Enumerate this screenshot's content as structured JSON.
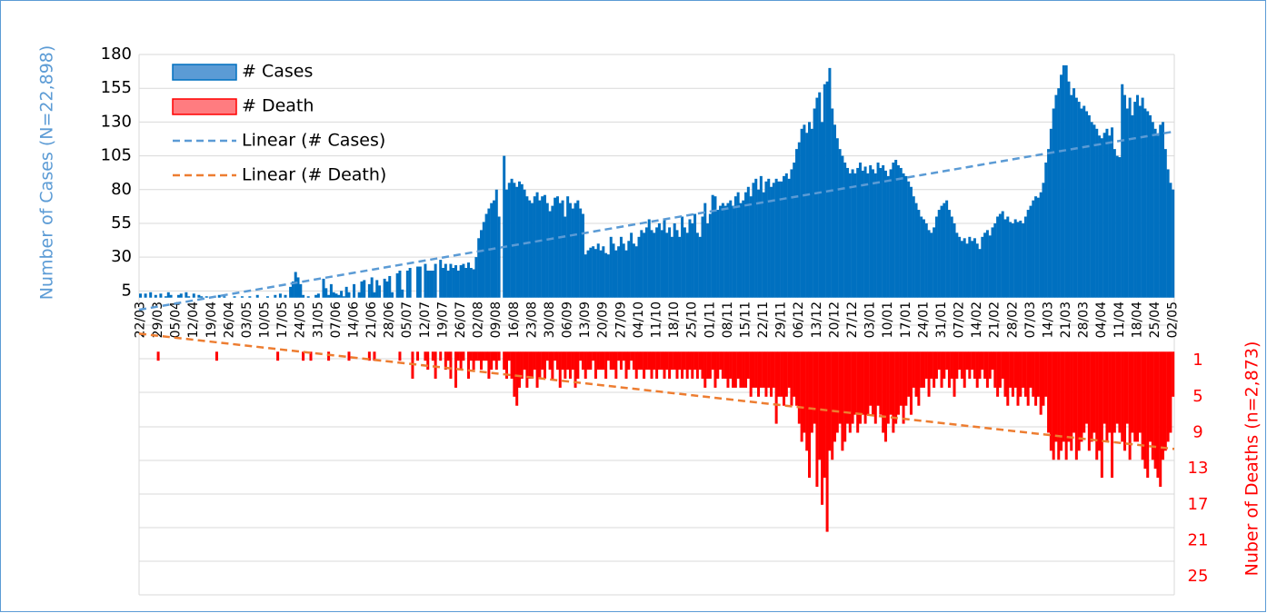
{
  "chart_data": {
    "type": "bar",
    "y_label": "Number of Cases (N=22,898)",
    "y2_label": "Nuber of Deaths (n=2,873)",
    "ylim": [
      -220,
      180
    ],
    "yticks": [
      5,
      30,
      55,
      80,
      105,
      130,
      155,
      180
    ],
    "y2lim": [
      27,
      -33
    ],
    "y2ticks": [
      1,
      5,
      9,
      13,
      17,
      21,
      25
    ],
    "legend": "top-left",
    "categories": [
      "22/03",
      null,
      null,
      null,
      null,
      null,
      null,
      "29/03",
      null,
      null,
      null,
      null,
      null,
      null,
      "05/04",
      null,
      null,
      null,
      null,
      null,
      null,
      "12/04",
      null,
      null,
      null,
      null,
      null,
      null,
      "19/04",
      null,
      null,
      null,
      null,
      null,
      null,
      "26/04",
      null,
      null,
      null,
      null,
      null,
      null,
      "03/05",
      null,
      null,
      null,
      null,
      null,
      null,
      "10/05",
      null,
      null,
      null,
      null,
      null,
      null,
      "17/05",
      null,
      null,
      null,
      null,
      null,
      null,
      "24/05",
      null,
      null,
      null,
      null,
      null,
      null,
      "31/05",
      null,
      null,
      null,
      null,
      null,
      null,
      "07/06",
      null,
      null,
      null,
      null,
      null,
      null,
      "14/06",
      null,
      null,
      null,
      null,
      null,
      null,
      "21/06",
      null,
      null,
      null,
      null,
      null,
      null,
      "28/06",
      null,
      null,
      null,
      null,
      null,
      null,
      "05/07",
      null,
      null,
      null,
      null,
      null,
      null,
      "12/07",
      null,
      null,
      null,
      null,
      null,
      null,
      "19/07",
      null,
      null,
      null,
      null,
      null,
      null,
      "26/07",
      null,
      null,
      null,
      null,
      null,
      null,
      "02/08",
      null,
      null,
      null,
      null,
      null,
      null,
      "09/08",
      null,
      null,
      null,
      null,
      null,
      null,
      "16/08",
      null,
      null,
      null,
      null,
      null,
      null,
      "23/08",
      null,
      null,
      null,
      null,
      null,
      null,
      "30/08",
      null,
      null,
      null,
      null,
      null,
      null,
      "06/09",
      null,
      null,
      null,
      null,
      null,
      null,
      "13/09",
      null,
      null,
      null,
      null,
      null,
      null,
      "20/09",
      null,
      null,
      null,
      null,
      null,
      null,
      "27/09",
      null,
      null,
      null,
      null,
      null,
      null,
      "04/10",
      null,
      null,
      null,
      null,
      null,
      null,
      "11/10",
      null,
      null,
      null,
      null,
      null,
      null,
      "18/10",
      null,
      null,
      null,
      null,
      null,
      null,
      "25/10",
      null,
      null,
      null,
      null,
      null,
      null,
      "01/11",
      null,
      null,
      null,
      null,
      null,
      null,
      "08/11",
      null,
      null,
      null,
      null,
      null,
      null,
      "15/11",
      null,
      null,
      null,
      null,
      null,
      null,
      "22/11",
      null,
      null,
      null,
      null,
      null,
      null,
      "29/11",
      null,
      null,
      null,
      null,
      null,
      null,
      "06/12",
      null,
      null,
      null,
      null,
      null,
      null,
      "13/12",
      null,
      null,
      null,
      null,
      null,
      null,
      "20/12",
      null,
      null,
      null,
      null,
      null,
      null,
      "27/12",
      null,
      null,
      null,
      null,
      null,
      null,
      "03/01",
      null,
      null,
      null,
      null,
      null,
      null,
      "10/01",
      null,
      null,
      null,
      null,
      null,
      null,
      "17/01",
      null,
      null,
      null,
      null,
      null,
      null,
      "24/01",
      null,
      null,
      null,
      null,
      null,
      null,
      "31/01",
      null,
      null,
      null,
      null,
      null,
      null,
      "07/02",
      null,
      null,
      null,
      null,
      null,
      null,
      "14/02",
      null,
      null,
      null,
      null,
      null,
      null,
      "21/02",
      null,
      null,
      null,
      null,
      null,
      null,
      "28/02",
      null,
      null,
      null,
      null,
      null,
      null,
      "07/03",
      null,
      null,
      null,
      null,
      null,
      null,
      "14/03",
      null,
      null,
      null,
      null,
      null,
      null,
      "21/03",
      null,
      null,
      null,
      null,
      null,
      null,
      "28/03",
      null,
      null,
      null,
      null,
      null,
      null,
      "04/04",
      null,
      null,
      null,
      null,
      null,
      null,
      "11/04",
      null,
      null,
      null,
      null,
      null,
      null,
      "18/04",
      null,
      null,
      null,
      null,
      null,
      null,
      "25/04",
      null,
      null,
      null,
      null,
      null,
      null,
      "02/05"
    ],
    "series": [
      {
        "name": "# Cases",
        "color": "#0070c0",
        "legend_fill": "#5b9bd5",
        "values": [
          3,
          0,
          3,
          0,
          4,
          0,
          2,
          0,
          3,
          0,
          1,
          4,
          2,
          0,
          0,
          2,
          3,
          0,
          4,
          1,
          0,
          3,
          0,
          2,
          1,
          0,
          1,
          0,
          0,
          1,
          0,
          2,
          0,
          1,
          0,
          0,
          0,
          1,
          0,
          0,
          1,
          0,
          0,
          1,
          0,
          0,
          2,
          0,
          0,
          0,
          1,
          0,
          0,
          2,
          0,
          3,
          0,
          2,
          0,
          8,
          12,
          19,
          15,
          10,
          2,
          0,
          1,
          0,
          0,
          2,
          3,
          0,
          14,
          7,
          2,
          10,
          4,
          3,
          2,
          5,
          1,
          8,
          4,
          0,
          10,
          0,
          4,
          12,
          13,
          0,
          10,
          15,
          4,
          13,
          9,
          0,
          14,
          12,
          16,
          4,
          0,
          18,
          20,
          6,
          0,
          20,
          22,
          0,
          0,
          23,
          23,
          0,
          25,
          20,
          20,
          20,
          25,
          0,
          28,
          22,
          25,
          20,
          25,
          22,
          24,
          20,
          24,
          25,
          22,
          26,
          22,
          21,
          30,
          44,
          50,
          56,
          62,
          66,
          70,
          72,
          80,
          60,
          0,
          105,
          80,
          85,
          88,
          85,
          82,
          86,
          84,
          80,
          75,
          72,
          70,
          75,
          78,
          72,
          75,
          76,
          70,
          64,
          68,
          74,
          75,
          70,
          72,
          60,
          75,
          70,
          66,
          70,
          72,
          66,
          62,
          32,
          35,
          37,
          38,
          36,
          40,
          35,
          38,
          33,
          32,
          45,
          40,
          35,
          38,
          45,
          40,
          35,
          42,
          48,
          40,
          38,
          45,
          50,
          48,
          52,
          58,
          50,
          48,
          52,
          55,
          50,
          58,
          48,
          52,
          45,
          55,
          50,
          45,
          60,
          52,
          48,
          58,
          55,
          62,
          48,
          45,
          60,
          70,
          55,
          62,
          76,
          75,
          65,
          68,
          70,
          68,
          70,
          72,
          68,
          75,
          78,
          70,
          72,
          78,
          82,
          75,
          85,
          88,
          80,
          90,
          78,
          86,
          88,
          82,
          85,
          88,
          86,
          86,
          90,
          92,
          88,
          95,
          100,
          110,
          115,
          125,
          128,
          122,
          130,
          125,
          140,
          148,
          152,
          130,
          158,
          160,
          170,
          140,
          128,
          118,
          110,
          105,
          100,
          96,
          92,
          95,
          92,
          96,
          100,
          94,
          97,
          92,
          98,
          95,
          92,
          100,
          96,
          98,
          94,
          90,
          95,
          100,
          102,
          98,
          96,
          92,
          90,
          86,
          82,
          75,
          70,
          65,
          60,
          58,
          55,
          50,
          48,
          52,
          60,
          65,
          68,
          70,
          72,
          65,
          60,
          55,
          48,
          45,
          42,
          44,
          40,
          45,
          42,
          44,
          40,
          36,
          45,
          48,
          50,
          46,
          52,
          55,
          60,
          62,
          64,
          58,
          60,
          56,
          55,
          58,
          56,
          57,
          55,
          60,
          65,
          68,
          72,
          75,
          74,
          78,
          85,
          100,
          110,
          125,
          140,
          150,
          155,
          165,
          172,
          172,
          160,
          150,
          155,
          148,
          145,
          140,
          142,
          138,
          135,
          130,
          128,
          125,
          120,
          118,
          122,
          125,
          120,
          126,
          110,
          105,
          104,
          158,
          150,
          140,
          148,
          135,
          145,
          150,
          142,
          148,
          140,
          138,
          135,
          130,
          125,
          120,
          128,
          130,
          110,
          95,
          85,
          80
        ]
      },
      {
        "name": "# Death",
        "color": "#ff0000",
        "legend_fill": "#ff7c80",
        "axis": "y2",
        "values": [
          0,
          0,
          0,
          0,
          0,
          0,
          0,
          1,
          0,
          0,
          0,
          0,
          0,
          0,
          0,
          0,
          0,
          0,
          0,
          0,
          0,
          0,
          0,
          0,
          0,
          0,
          0,
          0,
          0,
          0,
          1,
          0,
          0,
          0,
          0,
          0,
          0,
          0,
          0,
          0,
          0,
          0,
          0,
          0,
          0,
          0,
          0,
          0,
          0,
          0,
          0,
          0,
          0,
          0,
          1,
          0,
          0,
          0,
          0,
          0,
          0,
          0,
          0,
          0,
          1,
          0,
          0,
          1,
          0,
          0,
          0,
          0,
          0,
          0,
          1,
          0,
          0,
          0,
          0,
          0,
          0,
          0,
          1,
          0,
          0,
          0,
          0,
          0,
          0,
          0,
          1,
          0,
          1,
          0,
          0,
          0,
          0,
          0,
          0,
          0,
          0,
          0,
          1,
          0,
          0,
          0,
          0,
          3,
          0,
          1,
          0,
          0,
          1,
          2,
          0,
          1,
          3,
          0,
          1,
          0,
          2,
          1,
          3,
          0,
          4,
          1,
          2,
          1,
          0,
          3,
          1,
          2,
          1,
          1,
          2,
          1,
          1,
          3,
          2,
          1,
          2,
          1,
          0,
          2,
          3,
          1,
          3,
          5,
          6,
          4,
          3,
          2,
          4,
          3,
          3,
          2,
          4,
          3,
          2,
          3,
          1,
          2,
          3,
          1,
          2,
          4,
          2,
          3,
          2,
          3,
          2,
          4,
          3,
          1,
          2,
          3,
          2,
          2,
          1,
          3,
          2,
          2,
          2,
          3,
          1,
          2,
          2,
          3,
          1,
          2,
          1,
          3,
          2,
          1,
          2,
          3,
          2,
          2,
          3,
          2,
          2,
          3,
          2,
          3,
          2,
          2,
          3,
          2,
          3,
          2,
          2,
          3,
          2,
          3,
          2,
          3,
          2,
          3,
          2,
          3,
          2,
          3,
          4,
          3,
          3,
          2,
          4,
          3,
          2,
          3,
          3,
          4,
          3,
          4,
          4,
          3,
          4,
          4,
          4,
          3,
          5,
          4,
          4,
          5,
          4,
          4,
          5,
          4,
          5,
          4,
          8,
          5,
          5,
          6,
          5,
          4,
          6,
          5,
          6,
          8,
          10,
          9,
          11,
          14,
          9,
          8,
          15,
          12,
          17,
          14,
          20,
          11,
          12,
          10,
          9,
          8,
          11,
          10,
          8,
          9,
          8,
          7,
          9,
          8,
          7,
          8,
          7,
          6,
          7,
          8,
          6,
          7,
          9,
          10,
          8,
          7,
          9,
          8,
          7,
          6,
          8,
          6,
          5,
          7,
          4,
          5,
          6,
          4,
          4,
          3,
          5,
          3,
          4,
          3,
          2,
          4,
          3,
          2,
          4,
          3,
          5,
          3,
          2,
          3,
          4,
          2,
          3,
          2,
          3,
          4,
          3,
          2,
          3,
          4,
          3,
          2,
          4,
          5,
          4,
          3,
          5,
          6,
          4,
          5,
          4,
          6,
          5,
          4,
          5,
          6,
          4,
          5,
          6,
          5,
          7,
          6,
          5,
          9,
          11,
          12,
          10,
          12,
          11,
          10,
          12,
          10,
          11,
          9,
          12,
          11,
          10,
          9,
          8,
          11,
          10,
          9,
          12,
          11,
          14,
          8,
          10,
          9,
          14,
          9,
          8,
          9,
          10,
          11,
          8,
          12,
          9,
          10,
          10,
          9,
          12,
          13,
          14,
          10,
          12,
          13,
          14,
          15,
          12,
          11,
          10,
          9,
          5
        ]
      }
    ],
    "trendlines": [
      {
        "name": "Linear (# Cases)",
        "color": "#5b9bd5",
        "values": [
          -9,
          123
        ]
      },
      {
        "name": "Linear (# Death)",
        "color": "#ed7d31",
        "axis": "y2",
        "values": [
          -2,
          10.8
        ]
      }
    ]
  }
}
